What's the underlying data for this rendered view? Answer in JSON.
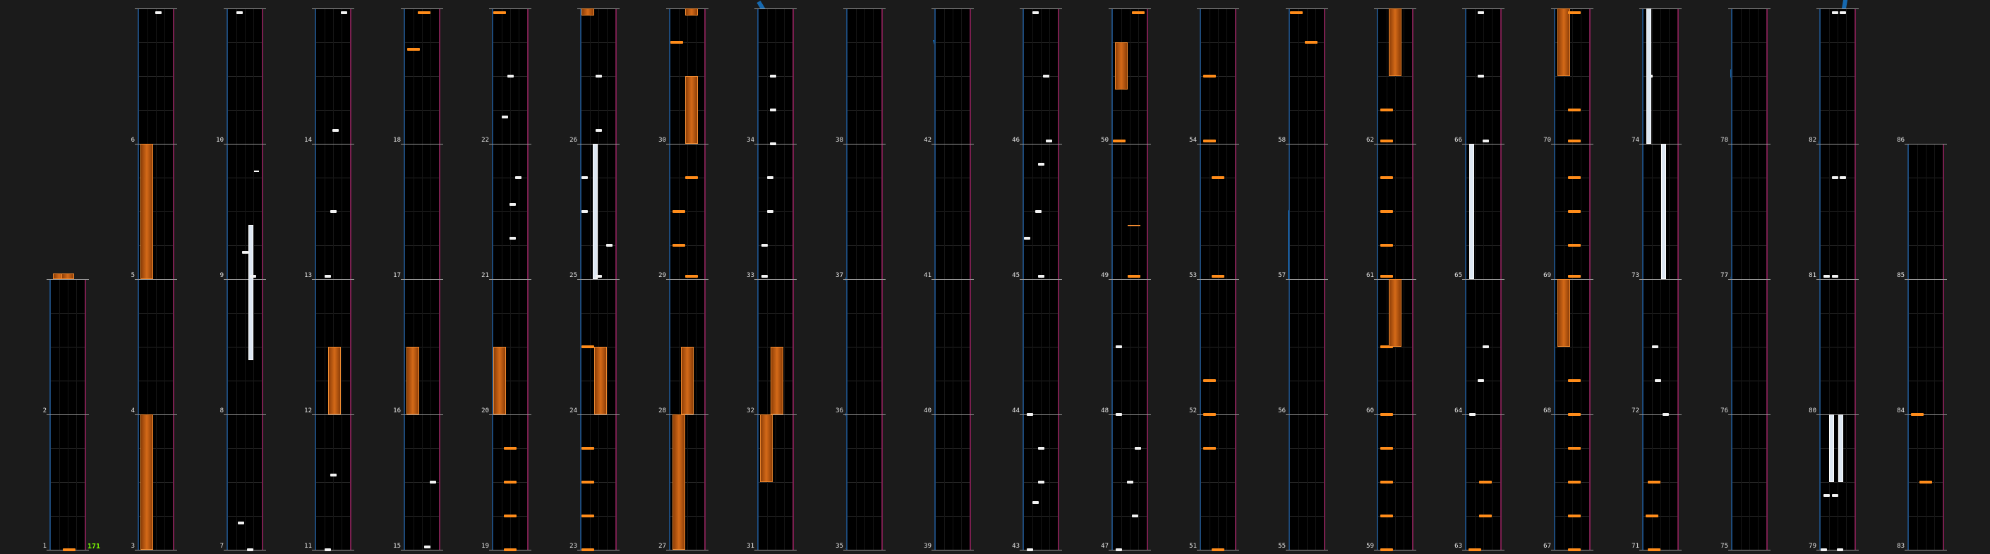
{
  "combo": "171",
  "colors": {
    "blue_slide": "#1669b0",
    "pink_slide": "#b0337c",
    "orange": "#ff8c1a",
    "white": "#f2f2f2"
  },
  "measures": [
    "1",
    "2",
    "3",
    "4",
    "5",
    "6",
    "7",
    "8",
    "9",
    "10",
    "11",
    "12",
    "13",
    "14",
    "15",
    "16",
    "17",
    "18",
    "19",
    "20",
    "21",
    "22",
    "23",
    "24",
    "25",
    "26",
    "27",
    "28",
    "29",
    "30",
    "31",
    "32",
    "33",
    "34",
    "35",
    "36",
    "37",
    "38",
    "39",
    "40",
    "41",
    "42",
    "43",
    "44",
    "45",
    "46",
    "47",
    "48",
    "49",
    "50",
    "51",
    "52",
    "53",
    "54",
    "55",
    "56",
    "57",
    "58",
    "59",
    "60",
    "61",
    "62",
    "63",
    "64",
    "65",
    "66",
    "67",
    "68",
    "69",
    "70",
    "71",
    "72",
    "73",
    "74",
    "75",
    "76",
    "77",
    "78",
    "79",
    "80",
    "81",
    "82",
    "83",
    "84",
    "85",
    "86"
  ],
  "note_types": {
    "tap": "tap-note",
    "hold": "hold-note",
    "slide": "slide-note"
  }
}
